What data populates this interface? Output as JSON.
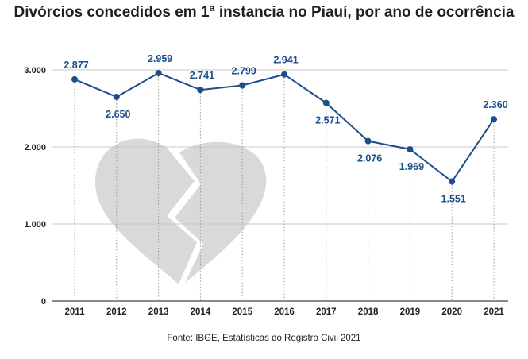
{
  "chart_data": {
    "type": "line",
    "title": "Divórcios concedidos em 1ª instancia no Piauí, por ano de ocorrência",
    "xlabel": "",
    "ylabel": "",
    "categories": [
      "2011",
      "2012",
      "2013",
      "2014",
      "2015",
      "2016",
      "2017",
      "2018",
      "2019",
      "2020",
      "2021"
    ],
    "values": [
      2877,
      2650,
      2959,
      2741,
      2799,
      2941,
      2571,
      2076,
      1969,
      1551,
      2360
    ],
    "data_labels": [
      "2.877",
      "2.650",
      "2.959",
      "2.741",
      "2.799",
      "2.941",
      "2.571",
      "2.076",
      "1.969",
      "1.551",
      "2.360"
    ],
    "label_positions": [
      "above",
      "below",
      "above",
      "above",
      "above",
      "above",
      "below",
      "below",
      "below",
      "below",
      "above"
    ],
    "ylim": [
      0,
      3000
    ],
    "yticks": [
      0,
      1000,
      2000,
      3000
    ],
    "ytick_labels": [
      "0",
      "1.000",
      "2.000",
      "3.000"
    ],
    "grid": true,
    "line_color": "#1b4f8c",
    "grid_color": "#c8c8c8",
    "watermark": "broken-heart-icon",
    "watermark_color": "#d9d9d9"
  },
  "source": "Fonte: IBGE, Estatísticas do Registro Civil 2021"
}
